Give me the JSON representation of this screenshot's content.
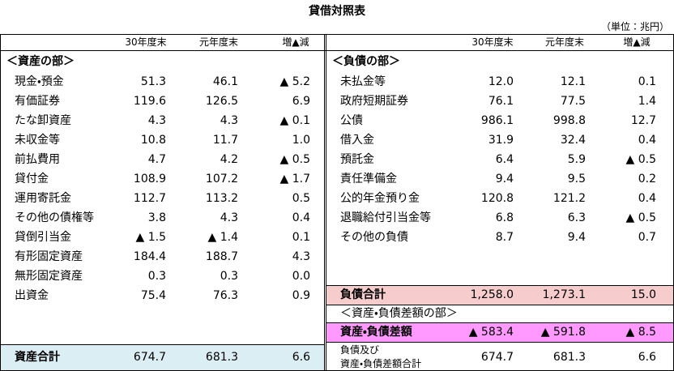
{
  "title": "貸借対照表",
  "unit": "（単位：兆円）",
  "assets": {
    "headers": [
      "30年度末",
      "元年度末",
      "増▲減"
    ],
    "section": "＜資産の部＞",
    "rows": [
      [
        "現金・預金",
        "51.3",
        "46.1",
        "▲ 5.2"
      ],
      [
        "有価証券",
        "119.6",
        "126.5",
        "6.9"
      ],
      [
        "たな卸資産",
        "4.3",
        "4.3",
        "▲ 0.1"
      ],
      [
        "未収金等",
        "10.8",
        "11.7",
        "1.0"
      ],
      [
        "前払費用",
        "4.7",
        "4.2",
        "▲ 0.5"
      ],
      [
        "貸付金",
        "108.9",
        "107.2",
        "▲ 1.7"
      ],
      [
        "運用寄託金",
        "112.7",
        "113.2",
        "0.5"
      ],
      [
        "その他の債権等",
        "3.8",
        "4.3",
        "0.4"
      ],
      [
        "貸倒引当金",
        "▲ 1.5",
        "▲ 1.4",
        "0.1"
      ],
      [
        "有形固定資産",
        "184.4",
        "188.7",
        "4.3"
      ],
      [
        "無形固定資産",
        "0.3",
        "0.3",
        "0.0"
      ],
      [
        "出資金",
        "75.4",
        "76.3",
        "0.9"
      ]
    ],
    "total": [
      "資産合計",
      "674.7",
      "681.3",
      "6.6"
    ]
  },
  "liabilities": {
    "headers": [
      "30年度末",
      "元年度末",
      "増▲減"
    ],
    "section": "＜負債の部＞",
    "rows": [
      [
        "未払金等",
        "12.0",
        "12.1",
        "0.1"
      ],
      [
        "政府短期証券",
        "76.1",
        "77.5",
        "1.4"
      ],
      [
        "公債",
        "986.1",
        "998.8",
        "12.7"
      ],
      [
        "借入金",
        "31.9",
        "32.4",
        "0.4"
      ],
      [
        "預託金",
        "6.4",
        "5.9",
        "▲ 0.5"
      ],
      [
        "責任準備金",
        "9.4",
        "9.5",
        "0.2"
      ],
      [
        "公的年金預り金",
        "120.8",
        "121.2",
        "0.4"
      ],
      [
        "退職給付引当金等",
        "6.8",
        "6.3",
        "▲ 0.5"
      ],
      [
        "その他の負債",
        "8.7",
        "9.4",
        "0.7"
      ]
    ],
    "total": [
      "負債合計",
      "1,258.0",
      "1,273.1",
      "15.0"
    ],
    "net_section": "＜資産・負債差額の部＞",
    "net": [
      "資産・負債差額",
      "▲ 583.4",
      "▲ 591.8",
      "▲ 8.5"
    ],
    "grand_total": [
      [
        "負債及び",
        "資産・負債差額合計"
      ],
      "674.7",
      "681.3",
      "6.6"
    ]
  }
}
